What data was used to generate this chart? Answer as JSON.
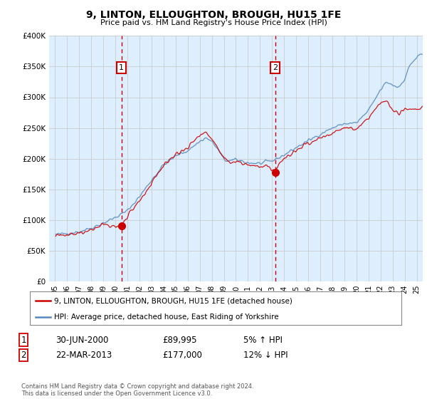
{
  "title": "9, LINTON, ELLOUGHTON, BROUGH, HU15 1FE",
  "subtitle": "Price paid vs. HM Land Registry's House Price Index (HPI)",
  "background_color": "#ffffff",
  "plot_bg_color": "#ddeeff",
  "grid_color": "#cccccc",
  "ylim": [
    0,
    400000
  ],
  "xlim_start": 1994.5,
  "xlim_end": 2025.5,
  "yticks": [
    0,
    50000,
    100000,
    150000,
    200000,
    250000,
    300000,
    350000,
    400000
  ],
  "ytick_labels": [
    "£0",
    "£50K",
    "£100K",
    "£150K",
    "£200K",
    "£250K",
    "£300K",
    "£350K",
    "£400K"
  ],
  "xticks": [
    1995,
    1996,
    1997,
    1998,
    1999,
    2000,
    2001,
    2002,
    2003,
    2004,
    2005,
    2006,
    2007,
    2008,
    2009,
    2010,
    2011,
    2012,
    2013,
    2014,
    2015,
    2016,
    2017,
    2018,
    2019,
    2020,
    2021,
    2022,
    2023,
    2024,
    2025
  ],
  "sale1_x": 2000.5,
  "sale1_y": 89995,
  "sale1_label": "1",
  "sale1_date": "30-JUN-2000",
  "sale1_price": "£89,995",
  "sale1_hpi": "5% ↑ HPI",
  "sale2_x": 2013.25,
  "sale2_y": 177000,
  "sale2_label": "2",
  "sale2_date": "22-MAR-2013",
  "sale2_price": "£177,000",
  "sale2_hpi": "12% ↓ HPI",
  "red_line_color": "#cc0000",
  "blue_line_color": "#5588bb",
  "marker_box_color": "#cc0000",
  "vline_color": "#cc0000",
  "legend_label1": "9, LINTON, ELLOUGHTON, BROUGH, HU15 1FE (detached house)",
  "legend_label2": "HPI: Average price, detached house, East Riding of Yorkshire",
  "footnote": "Contains HM Land Registry data © Crown copyright and database right 2024.\nThis data is licensed under the Open Government Licence v3.0."
}
